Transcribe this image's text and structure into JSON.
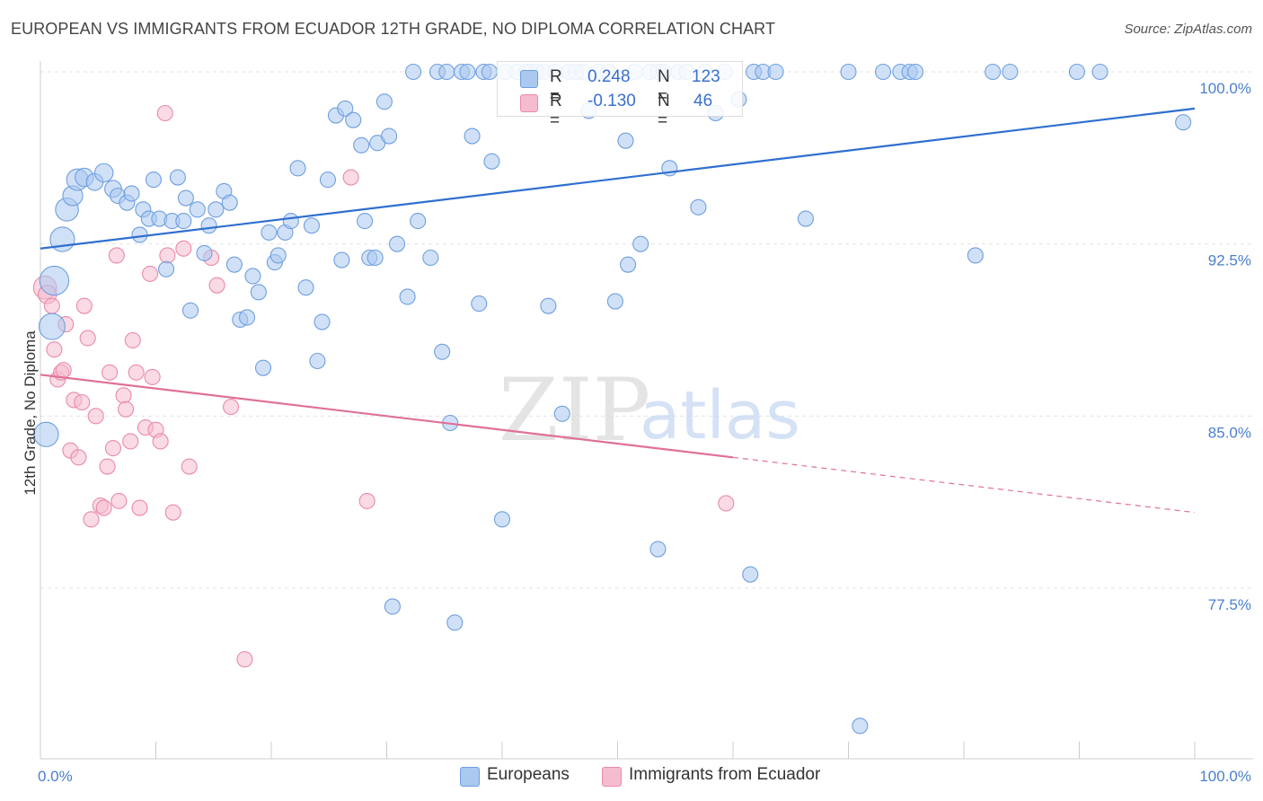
{
  "header": {
    "title": "EUROPEAN VS IMMIGRANTS FROM ECUADOR 12TH GRADE, NO DIPLOMA CORRELATION CHART",
    "source": "Source: ZipAtlas.com"
  },
  "watermark": {
    "zip": "ZIP",
    "atlas": "atlas"
  },
  "colors": {
    "blue_fill": "#aac8f0",
    "blue_stroke": "#6f9fe0",
    "blue_line": "#2f6fd0",
    "pink_fill": "#f5bcd0",
    "pink_stroke": "#e98aab",
    "pink_line": "#e0709a",
    "tick_color": "#4a7fd0",
    "grid": "#e3e3e3"
  },
  "legend": {
    "rows": [
      {
        "r_label": "R =",
        "r_value": "0.248",
        "n_label": "N =",
        "n_value": "123"
      },
      {
        "r_label": "R =",
        "r_value": "-0.130",
        "n_label": "N =",
        "n_value": "46"
      }
    ]
  },
  "bottom_legend": {
    "europeans": "Europeans",
    "ecuador": "Immigrants from Ecuador"
  },
  "chart_data": {
    "type": "scatter",
    "ylabel": "12th Grade, No Diploma",
    "xlim": [
      0,
      100
    ],
    "ylim": [
      71,
      101.5
    ],
    "y_ticks": [
      {
        "value": 100.0,
        "label": "100.0%"
      },
      {
        "value": 92.5,
        "label": "92.5%"
      },
      {
        "value": 85.0,
        "label": "85.0%"
      },
      {
        "value": 77.5,
        "label": "77.5%"
      }
    ],
    "x_tick_labels": {
      "min": "0.0%",
      "max": "100.0%"
    },
    "grid": true,
    "series": [
      {
        "name": "Europeans",
        "color": "blue",
        "trend": {
          "x": [
            0,
            100
          ],
          "y": [
            92.3,
            98.4
          ]
        },
        "points": [
          [
            0.5,
            84.2,
            1.6
          ],
          [
            1.2,
            90.9,
            1.9
          ],
          [
            1.0,
            88.9,
            1.7
          ],
          [
            1.9,
            92.7,
            1.6
          ],
          [
            2.3,
            94.0,
            1.5
          ],
          [
            2.8,
            94.6,
            1.3
          ],
          [
            3.2,
            95.3,
            1.4
          ],
          [
            3.8,
            95.4,
            1.2
          ],
          [
            4.7,
            95.2,
            1.1
          ],
          [
            5.5,
            95.6,
            1.2
          ],
          [
            6.3,
            94.9,
            1.1
          ],
          [
            6.7,
            94.6,
            1.0
          ],
          [
            7.5,
            94.3,
            1.0
          ],
          [
            7.9,
            94.7,
            1.0
          ],
          [
            8.6,
            92.9,
            1.0
          ],
          [
            8.9,
            94.0,
            1.0
          ],
          [
            9.4,
            93.6,
            1.0
          ],
          [
            9.8,
            95.3,
            1.0
          ],
          [
            10.3,
            93.6,
            1.0
          ],
          [
            10.9,
            91.4,
            1.0
          ],
          [
            11.4,
            93.5,
            1.0
          ],
          [
            11.9,
            95.4,
            1.0
          ],
          [
            12.4,
            93.5,
            1.0
          ],
          [
            12.6,
            94.5,
            1.0
          ],
          [
            13.0,
            89.6,
            1.0
          ],
          [
            13.6,
            94.0,
            1.0
          ],
          [
            14.2,
            92.1,
            1.0
          ],
          [
            14.6,
            93.3,
            1.0
          ],
          [
            15.2,
            94.0,
            1.0
          ],
          [
            15.9,
            94.8,
            1.0
          ],
          [
            16.4,
            94.3,
            1.0
          ],
          [
            16.8,
            91.6,
            1.0
          ],
          [
            17.3,
            89.2,
            1.0
          ],
          [
            17.9,
            89.3,
            1.0
          ],
          [
            18.4,
            91.1,
            1.0
          ],
          [
            18.9,
            90.4,
            1.0
          ],
          [
            19.3,
            87.1,
            1.0
          ],
          [
            19.8,
            93.0,
            1.0
          ],
          [
            20.3,
            91.7,
            1.0
          ],
          [
            20.6,
            92.0,
            1.0
          ],
          [
            21.2,
            93.0,
            1.0
          ],
          [
            21.7,
            93.5,
            1.0
          ],
          [
            22.3,
            95.8,
            1.0
          ],
          [
            23.0,
            90.6,
            1.0
          ],
          [
            23.5,
            93.3,
            1.0
          ],
          [
            24.0,
            87.4,
            1.0
          ],
          [
            24.4,
            89.1,
            1.0
          ],
          [
            24.9,
            95.3,
            1.0
          ],
          [
            25.6,
            98.1,
            1.0
          ],
          [
            26.1,
            91.8,
            1.0
          ],
          [
            26.4,
            98.4,
            1.0
          ],
          [
            27.1,
            97.9,
            1.0
          ],
          [
            27.8,
            96.8,
            1.0
          ],
          [
            28.1,
            93.5,
            1.0
          ],
          [
            28.5,
            91.9,
            1.0
          ],
          [
            29.2,
            96.9,
            1.0
          ],
          [
            29.8,
            98.7,
            1.0
          ],
          [
            30.2,
            97.2,
            1.0
          ],
          [
            30.9,
            92.5,
            1.0
          ],
          [
            31.8,
            90.2,
            1.0
          ],
          [
            32.3,
            100.0,
            1.0
          ],
          [
            32.7,
            93.5,
            1.0
          ],
          [
            33.8,
            91.9,
            1.0
          ],
          [
            34.4,
            100.0,
            1.0
          ],
          [
            34.8,
            87.8,
            1.0
          ],
          [
            35.2,
            100.0,
            1.0
          ],
          [
            35.5,
            84.7,
            1.0
          ],
          [
            35.9,
            76.0,
            1.0
          ],
          [
            36.5,
            100.0,
            1.0
          ],
          [
            37.0,
            100.0,
            1.0
          ],
          [
            37.4,
            97.2,
            1.0
          ],
          [
            38.0,
            89.9,
            1.0
          ],
          [
            38.4,
            100.0,
            1.0
          ],
          [
            38.9,
            100.0,
            1.0
          ],
          [
            39.1,
            96.1,
            1.0
          ],
          [
            40.0,
            80.5,
            1.0
          ],
          [
            40.3,
            100.0,
            1.0
          ],
          [
            41.3,
            100.0,
            1.0
          ],
          [
            42.1,
            100.0,
            1.0
          ],
          [
            42.5,
            100.0,
            1.0
          ],
          [
            43.0,
            100.0,
            1.0
          ],
          [
            43.6,
            100.0,
            1.0
          ],
          [
            44.0,
            89.8,
            1.0
          ],
          [
            44.6,
            100.0,
            1.0
          ],
          [
            45.2,
            85.1,
            1.0
          ],
          [
            45.8,
            100.0,
            1.0
          ],
          [
            46.4,
            100.0,
            1.0
          ],
          [
            47.0,
            100.0,
            1.0
          ],
          [
            47.5,
            98.3,
            1.0
          ],
          [
            48.3,
            100.0,
            1.0
          ],
          [
            49.2,
            100.0,
            1.0
          ],
          [
            49.8,
            90.0,
            1.0
          ],
          [
            50.7,
            97.0,
            1.0
          ],
          [
            50.9,
            91.6,
            1.0
          ],
          [
            51.5,
            100.0,
            1.0
          ],
          [
            52.0,
            92.5,
            1.0
          ],
          [
            52.8,
            100.0,
            1.0
          ],
          [
            53.5,
            100.0,
            1.0
          ],
          [
            54.0,
            100.0,
            1.0
          ],
          [
            53.5,
            79.2,
            1.0
          ],
          [
            54.5,
            95.8,
            1.0
          ],
          [
            55.3,
            100.0,
            1.0
          ],
          [
            56.0,
            100.0,
            1.0
          ],
          [
            57.0,
            94.1,
            1.0
          ],
          [
            57.6,
            100.0,
            1.0
          ],
          [
            58.5,
            98.2,
            1.0
          ],
          [
            59.3,
            100.0,
            1.0
          ],
          [
            60.5,
            98.8,
            1.0
          ],
          [
            61.5,
            78.1,
            1.0
          ],
          [
            61.8,
            100.0,
            1.0
          ],
          [
            62.6,
            100.0,
            1.0
          ],
          [
            63.7,
            100.0,
            1.0
          ],
          [
            66.3,
            93.6,
            1.0
          ],
          [
            70.0,
            100.0,
            1.0
          ],
          [
            71.0,
            71.5,
            1.0
          ],
          [
            73.0,
            100.0,
            1.0
          ],
          [
            74.5,
            100.0,
            1.0
          ],
          [
            75.3,
            100.0,
            1.0
          ],
          [
            75.8,
            100.0,
            1.0
          ],
          [
            81.0,
            92.0,
            1.0
          ],
          [
            82.5,
            100.0,
            1.0
          ],
          [
            84.0,
            100.0,
            1.0
          ],
          [
            89.8,
            100.0,
            1.0
          ],
          [
            91.8,
            100.0,
            1.0
          ],
          [
            99.0,
            97.8,
            1.0
          ],
          [
            29.0,
            91.9,
            1.0
          ],
          [
            30.5,
            76.7,
            1.0
          ]
        ]
      },
      {
        "name": "Immigrants from Ecuador",
        "color": "pink",
        "trend": {
          "x": [
            0,
            60
          ],
          "y": [
            86.8,
            83.2
          ]
        },
        "trend_dashed": {
          "x": [
            60,
            100
          ],
          "y": [
            83.2,
            80.8
          ]
        },
        "points": [
          [
            0.4,
            90.6,
            1.5
          ],
          [
            0.6,
            90.3,
            1.2
          ],
          [
            1.0,
            89.8,
            1.0
          ],
          [
            1.2,
            87.9,
            1.0
          ],
          [
            1.5,
            86.6,
            1.0
          ],
          [
            1.8,
            86.9,
            1.0
          ],
          [
            2.2,
            89.0,
            1.0
          ],
          [
            2.6,
            83.5,
            1.0
          ],
          [
            2.9,
            85.7,
            1.0
          ],
          [
            3.3,
            83.2,
            1.0
          ],
          [
            3.6,
            85.6,
            1.0
          ],
          [
            3.8,
            89.8,
            1.0
          ],
          [
            4.1,
            88.4,
            1.0
          ],
          [
            4.4,
            80.5,
            1.0
          ],
          [
            4.8,
            85.0,
            1.0
          ],
          [
            5.2,
            81.1,
            1.0
          ],
          [
            5.5,
            81.0,
            1.0
          ],
          [
            5.8,
            82.8,
            1.0
          ],
          [
            6.0,
            86.9,
            1.0
          ],
          [
            6.3,
            83.6,
            1.0
          ],
          [
            6.6,
            92.0,
            1.0
          ],
          [
            6.8,
            81.3,
            1.0
          ],
          [
            7.2,
            85.9,
            1.0
          ],
          [
            7.4,
            85.3,
            1.0
          ],
          [
            7.8,
            83.9,
            1.0
          ],
          [
            8.0,
            88.3,
            1.0
          ],
          [
            8.3,
            86.9,
            1.0
          ],
          [
            8.6,
            81.0,
            1.0
          ],
          [
            9.1,
            84.5,
            1.0
          ],
          [
            9.5,
            91.2,
            1.0
          ],
          [
            9.7,
            86.7,
            1.0
          ],
          [
            10.0,
            84.4,
            1.0
          ],
          [
            10.4,
            83.9,
            1.0
          ],
          [
            10.8,
            98.2,
            1.0
          ],
          [
            11.0,
            92.0,
            1.0
          ],
          [
            11.5,
            80.8,
            1.0
          ],
          [
            12.4,
            92.3,
            1.0
          ],
          [
            12.9,
            82.8,
            1.0
          ],
          [
            14.8,
            91.9,
            1.0
          ],
          [
            15.3,
            90.7,
            1.0
          ],
          [
            16.5,
            85.4,
            1.0
          ],
          [
            17.7,
            74.4,
            1.0
          ],
          [
            26.9,
            95.4,
            1.0
          ],
          [
            28.3,
            81.3,
            1.0
          ],
          [
            59.4,
            81.2,
            1.0
          ],
          [
            2.0,
            87.0,
            1.0
          ]
        ]
      }
    ]
  }
}
